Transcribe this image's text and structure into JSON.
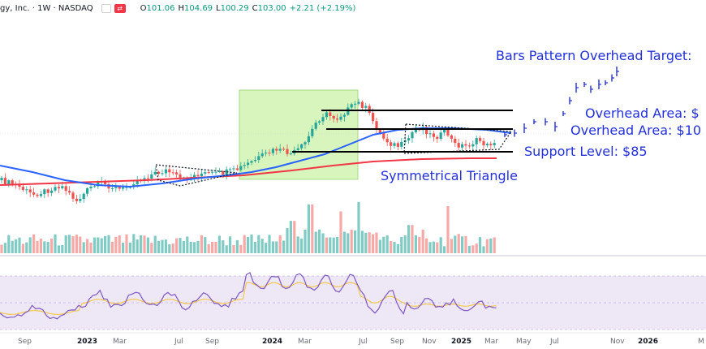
{
  "header": {
    "symbol": "gy, Inc. · 1W · NASDAQ",
    "ohlc": [
      {
        "key": "O",
        "value": "101.06"
      },
      {
        "key": "H",
        "value": "104.69"
      },
      {
        "key": "L",
        "value": "100.29"
      },
      {
        "key": "C",
        "value": "103.00"
      },
      {
        "key": "",
        "value": "+2.21 (+2.19%)"
      }
    ]
  },
  "colors": {
    "up": "#26a69a",
    "down": "#ef5350",
    "ma50": "#2962ff",
    "ma200": "#f23645",
    "annotation": "#2430d9",
    "highlight": "#c9f2a6",
    "rsi": "#7e57c2",
    "rsi_ma": "#f5c84c",
    "rsi_band": "#ede7f6"
  },
  "annotations": {
    "target": "Bars Pattern Overhead Target: ",
    "overhead1": "Overhead Area: $",
    "overhead2": "Overhead Area: $10",
    "support": "Support Level: $85",
    "triangle": "Symmetrical Triangle"
  },
  "x_axis_labels": [
    {
      "text": "Sep",
      "bold": false
    },
    {
      "text": "2023",
      "bold": true
    },
    {
      "text": "Mar",
      "bold": false
    },
    {
      "text": "Jul",
      "bold": false
    },
    {
      "text": "Sep",
      "bold": false
    },
    {
      "text": "2024",
      "bold": true
    },
    {
      "text": "Mar",
      "bold": false
    },
    {
      "text": "Jul",
      "bold": false
    },
    {
      "text": "Sep",
      "bold": false
    },
    {
      "text": "Nov",
      "bold": false
    },
    {
      "text": "2025",
      "bold": true
    },
    {
      "text": "Mar",
      "bold": false
    },
    {
      "text": "May",
      "bold": false
    },
    {
      "text": "Jul",
      "bold": false
    },
    {
      "text": "Nov",
      "bold": false
    },
    {
      "text": "2026",
      "bold": true
    },
    {
      "text": "M",
      "bold": false
    }
  ],
  "chart_data": {
    "type": "candlestick",
    "panes": [
      "price",
      "volume",
      "rsi"
    ],
    "series": [
      {
        "kind": "candles"
      },
      {
        "kind": "moving-average",
        "color": "#2962ff"
      },
      {
        "kind": "moving-average",
        "color": "#f23645"
      },
      {
        "kind": "volume"
      },
      {
        "kind": "rsi",
        "color": "#7e57c2"
      },
      {
        "kind": "rsi-ma",
        "color": "#f5c84c"
      }
    ],
    "levels": {
      "support": 85
    },
    "last_bar": {
      "open": 101.06,
      "high": 104.69,
      "low": 100.29,
      "close": 103.0,
      "change": 2.21,
      "change_pct": 2.19
    }
  }
}
